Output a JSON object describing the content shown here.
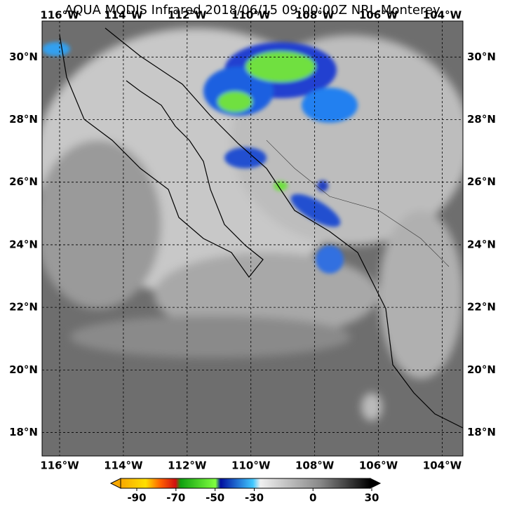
{
  "map": {
    "title": "AQUA MODIS Infrared 2018/06/15 09:00:00Z NRL-Monterey",
    "lon_range": [
      -116.55,
      -103.35
    ],
    "lat_range": [
      17.25,
      31.15
    ],
    "lon_ticks": [
      {
        "value": -116,
        "label": "116°W"
      },
      {
        "value": -114,
        "label": "114°W"
      },
      {
        "value": -112,
        "label": "112°W"
      },
      {
        "value": -110,
        "label": "110°W"
      },
      {
        "value": -108,
        "label": "108°W"
      },
      {
        "value": -106,
        "label": "106°W"
      },
      {
        "value": -104,
        "label": "104°W"
      }
    ],
    "lat_ticks": [
      {
        "value": 30,
        "label": "30°N"
      },
      {
        "value": 28,
        "label": "28°N"
      },
      {
        "value": 26,
        "label": "26°N"
      },
      {
        "value": 24,
        "label": "24°N"
      },
      {
        "value": 22,
        "label": "22°N"
      },
      {
        "value": 20,
        "label": "20°N"
      },
      {
        "value": 18,
        "label": "18°N"
      }
    ],
    "colorbar": {
      "range": [
        -90,
        30
      ],
      "ticks": [
        -90,
        -70,
        -50,
        -30,
        0,
        30
      ]
    }
  }
}
